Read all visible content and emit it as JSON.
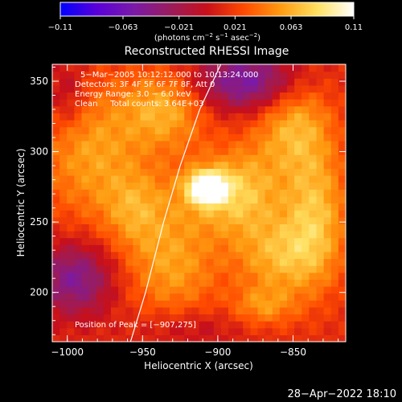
{
  "chart_data": {
    "type": "heatmap",
    "title": "Reconstructed RHESSI Image",
    "xlabel": "Heliocentric X (arcsec)",
    "ylabel": "Heliocentric Y (arcsec)",
    "xlim": [
      -1010,
      -815
    ],
    "ylim": [
      165,
      362
    ],
    "x_ticks": [
      -1000,
      -950,
      -900,
      -850
    ],
    "x_tick_labels": [
      "−1000",
      "−950",
      "−900",
      "−850"
    ],
    "y_ticks": [
      200,
      250,
      300,
      350
    ],
    "y_tick_labels": [
      "200",
      "250",
      "300",
      "350"
    ],
    "colorbar": {
      "range": [
        -0.11,
        0.11
      ],
      "ticks": [
        -0.11,
        -0.063,
        -0.021,
        0.021,
        0.063,
        0.11
      ],
      "tick_labels": [
        "−0.11",
        "−0.063",
        "−0.021",
        "0.021",
        "0.063",
        "0.11"
      ],
      "units_main": "(photons cm",
      "units_exp1": "−2",
      "units_mid": " s",
      "units_exp2": "−1",
      "units_end": " asec",
      "units_exp3": "−2",
      "units_close": ")",
      "colors": [
        "#0000ff",
        "#5a00d8",
        "#7a1aa8",
        "#9a1c5c",
        "#c8101a",
        "#ff4a00",
        "#ff9a10",
        "#ffe060",
        "#ffffff"
      ]
    },
    "annotations": {
      "time_range": "5−Mar−2005 10:12:12.000 to 10:13:24.000",
      "detectors": "Detectors: 3F 4F 5F 6F 7F 8F, Att 0",
      "energy": "Energy Range: 3.0 − 6.0 keV",
      "clean": "Clean     Total counts: 3.64E+03",
      "peak": "Position of Peak = [−907,275]"
    },
    "peak": {
      "x": -907,
      "y": 275,
      "value": 0.11
    },
    "limb_curve": {
      "x": [
        -958,
        -948,
        -936,
        -925,
        -912,
        -898
      ],
      "y": [
        165,
        200,
        250,
        290,
        330,
        362
      ]
    },
    "sources": [
      {
        "x": -907,
        "y": 275,
        "sx": 8,
        "sy": 7,
        "amp": 0.11
      },
      {
        "x": -905,
        "y": 272,
        "sx": 20,
        "sy": 18,
        "amp": 0.04
      },
      {
        "x": -985,
        "y": 300,
        "sx": 25,
        "sy": 35,
        "amp": 0.045
      },
      {
        "x": -935,
        "y": 330,
        "sx": 20,
        "sy": 20,
        "amp": 0.05
      },
      {
        "x": -850,
        "y": 320,
        "sx": 18,
        "sy": 25,
        "amp": 0.05
      },
      {
        "x": -835,
        "y": 255,
        "sx": 15,
        "sy": 35,
        "amp": 0.055
      },
      {
        "x": -860,
        "y": 225,
        "sx": 20,
        "sy": 20,
        "amp": 0.045
      },
      {
        "x": -930,
        "y": 220,
        "sx": 22,
        "sy": 28,
        "amp": 0.045
      },
      {
        "x": -880,
        "y": 270,
        "sx": 18,
        "sy": 25,
        "amp": 0.04
      },
      {
        "x": -955,
        "y": 260,
        "sx": 15,
        "sy": 20,
        "amp": 0.035
      },
      {
        "x": -870,
        "y": 190,
        "sx": 15,
        "sy": 10,
        "amp": 0.035
      },
      {
        "x": -995,
        "y": 210,
        "sx": 18,
        "sy": 18,
        "amp": -0.06
      },
      {
        "x": -880,
        "y": 350,
        "sx": 25,
        "sy": 15,
        "amp": -0.07
      },
      {
        "x": -1000,
        "y": 340,
        "sx": 10,
        "sy": 18,
        "amp": -0.03
      },
      {
        "x": -920,
        "y": 175,
        "sx": 25,
        "sy": 10,
        "amp": -0.02
      }
    ],
    "grid": false,
    "legend": "none"
  },
  "footer": {
    "timestamp": "28−Apr−2022 18:10"
  }
}
